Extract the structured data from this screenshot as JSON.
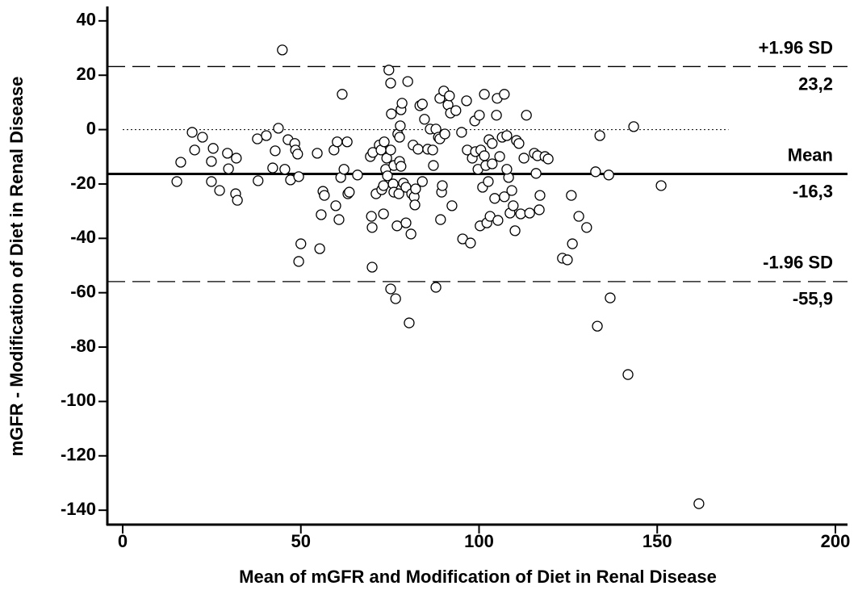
{
  "chart_data": {
    "type": "scatter",
    "xlabel": "Mean of mGFR  and Modification of Diet in Renal Disease",
    "ylabel": "mGFR  - Modification of Diet in Renal Disease",
    "xlim": [
      -4.3,
      203.4
    ],
    "ylim": [
      -145.3,
      45.3
    ],
    "xticks": [
      0,
      50,
      100,
      150,
      200
    ],
    "yticks": [
      -140,
      -120,
      -100,
      -80,
      -60,
      -40,
      -20,
      0,
      20,
      40
    ],
    "marker_fill": "#ffffff",
    "marker_stroke": "#000000",
    "x": [
      15.2,
      16.3,
      19.5,
      20.2,
      22.4,
      24.9,
      25.4,
      24.9,
      27.2,
      29.4,
      29.7,
      31.9,
      31.7,
      32.2,
      37.8,
      38.0,
      40.3,
      42.1,
      42.8,
      43.7,
      44.8,
      45.5,
      46.4,
      47.1,
      48.3,
      48.5,
      49.1,
      49.4,
      50.0,
      49.4,
      54.6,
      55.3,
      55.7,
      56.2,
      56.6,
      59.3,
      59.8,
      60.2,
      60.7,
      61.2,
      61.6,
      62.1,
      63.0,
      63.2,
      63.6,
      65.9,
      69.5,
      70.2,
      69.8,
      70.0,
      70.0,
      71.1,
      72.0,
      72.5,
      72.7,
      73.2,
      73.2,
      73.4,
      73.8,
      74.1,
      74.3,
      74.7,
      75.2,
      75.2,
      75.2,
      75.4,
      75.9,
      76.1,
      76.1,
      76.6,
      77.0,
      77.2,
      77.5,
      77.7,
      77.7,
      77.9,
      78.1,
      78.4,
      78.1,
      78.8,
      79.5,
      79.5,
      80.0,
      80.4,
      80.9,
      81.1,
      81.5,
      81.8,
      82.0,
      82.2,
      82.9,
      83.4,
      84.1,
      84.1,
      84.7,
      85.6,
      86.3,
      87.0,
      87.2,
      87.9,
      87.9,
      88.6,
      89.0,
      89.0,
      89.2,
      89.5,
      89.7,
      90.1,
      90.4,
      91.3,
      91.7,
      92.0,
      92.4,
      93.5,
      95.1,
      95.4,
      96.5,
      96.7,
      97.6,
      98.1,
      98.8,
      99.0,
      99.7,
      100.1,
      100.3,
      100.5,
      101.0,
      101.5,
      101.5,
      101.9,
      102.2,
      102.6,
      102.8,
      103.1,
      103.7,
      104.4,
      104.9,
      105.1,
      105.3,
      105.8,
      106.5,
      107.1,
      107.1,
      107.8,
      108.3,
      108.7,
      109.2,
      109.6,
      110.1,
      110.5,
      111.2,
      111.7,
      112.6,
      113.3,
      114.2,
      115.5,
      116.0,
      116.4,
      116.9,
      117.1,
      118.5,
      119.4,
      123.4,
      124.8,
      125.9,
      126.2,
      128.0,
      130.2,
      132.7,
      133.2,
      133.9,
      136.4,
      136.8,
      141.8,
      143.4,
      151.1,
      161.7,
      107.8,
      103.7
    ],
    "values": [
      -19.1,
      -12.0,
      -1.0,
      -7.5,
      -2.8,
      -11.7,
      -6.9,
      -19.1,
      -22.4,
      -8.7,
      -14.4,
      -10.5,
      -23.6,
      -26.0,
      -3.4,
      -18.8,
      -2.2,
      -14.1,
      -7.8,
      0.5,
      29.3,
      -14.6,
      -3.7,
      -18.5,
      -5.1,
      -7.5,
      -9.0,
      -17.3,
      -42.0,
      -48.5,
      -8.7,
      -43.8,
      -31.3,
      -22.7,
      -24.2,
      -7.5,
      -28.0,
      -4.5,
      -33.1,
      -17.6,
      13.0,
      -14.6,
      -4.5,
      -23.6,
      -23.0,
      -16.7,
      -9.9,
      -8.4,
      -31.9,
      -36.0,
      -50.6,
      -23.6,
      -5.7,
      -7.5,
      -22.1,
      -31.0,
      -20.6,
      -4.5,
      -14.6,
      -10.5,
      -17.0,
      21.9,
      -7.5,
      17.1,
      -58.6,
      5.8,
      -20.0,
      -13.2,
      -23.0,
      -62.2,
      -35.4,
      -1.6,
      -23.6,
      -2.8,
      -11.7,
      1.4,
      7.3,
      9.7,
      -13.5,
      -19.7,
      -21.2,
      -34.3,
      17.7,
      -71.1,
      -38.4,
      -23.6,
      -5.7,
      -24.7,
      -27.7,
      -21.8,
      -7.2,
      8.8,
      9.4,
      -19.1,
      3.8,
      -7.2,
      0.2,
      -7.5,
      -13.2,
      0.2,
      -58.0,
      -2.8,
      11.5,
      -3.4,
      -33.1,
      -23.0,
      -20.6,
      14.2,
      -1.6,
      9.1,
      12.4,
      6.1,
      -28.0,
      7.0,
      -1.0,
      -40.2,
      10.6,
      -7.5,
      -41.7,
      -10.5,
      3.2,
      -8.1,
      -14.6,
      5.3,
      -35.4,
      -7.5,
      -21.2,
      13.0,
      -9.6,
      -13.2,
      -34.3,
      -19.1,
      -3.7,
      -31.9,
      -12.6,
      -25.3,
      5.3,
      11.5,
      -33.4,
      -9.9,
      -2.8,
      13.0,
      -24.7,
      -2.2,
      -17.6,
      -30.7,
      -22.4,
      -28.0,
      -37.2,
      -4.0,
      -5.1,
      -31.0,
      -10.5,
      5.3,
      -30.7,
      -8.7,
      -16.1,
      -9.6,
      -29.5,
      -24.2,
      -9.9,
      -10.8,
      -47.3,
      -47.9,
      -24.2,
      -42.0,
      -31.9,
      -36.0,
      -15.5,
      -72.3,
      -2.2,
      -16.7,
      -61.9,
      -90.1,
      1.1,
      -20.6,
      -137.6,
      -14.6,
      -5.1
    ],
    "reference_lines": [
      {
        "name": "+1.96 SD",
        "value": 23.2,
        "label": "23,2",
        "style": "dashed"
      },
      {
        "name": "Mean",
        "value": -16.3,
        "label": "-16,3",
        "style": "solid"
      },
      {
        "name": "-1.96 SD",
        "value": -55.9,
        "label": "-55,9",
        "style": "dashed"
      }
    ],
    "zero_line": {
      "value": 0,
      "x": [
        0,
        170
      ],
      "style": "dotted"
    }
  }
}
